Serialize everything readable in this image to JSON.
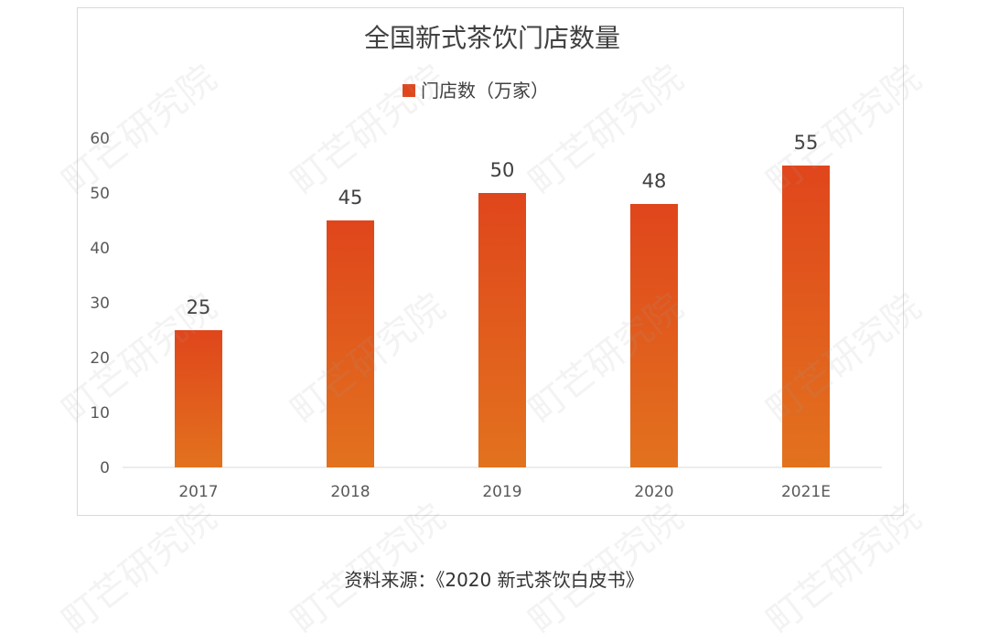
{
  "chart_data": {
    "type": "bar",
    "title": "全国新式茶饮门店数量",
    "categories": [
      "2017",
      "2018",
      "2019",
      "2020",
      "2021E"
    ],
    "series": [
      {
        "name": "门店数（万家）",
        "values": [
          25,
          45,
          50,
          48,
          55
        ]
      }
    ],
    "data_labels": [
      "25",
      "45",
      "50",
      "48",
      "55"
    ],
    "ylim": [
      0,
      60
    ],
    "yticks": [
      "0",
      "10",
      "20",
      "30",
      "40",
      "50",
      "60"
    ],
    "grid": false,
    "legend_position": "top-center",
    "bar_color_top": "#e0461c",
    "bar_color_bottom": "#e2721e"
  },
  "watermark": "町芒研究院",
  "source_note": "资料来源：《2020 新式茶饮白皮书》"
}
